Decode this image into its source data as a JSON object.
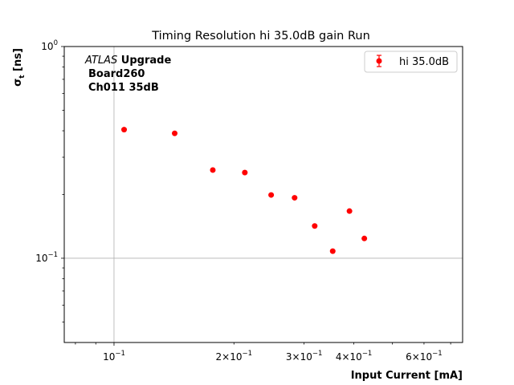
{
  "chart_data": {
    "type": "scatter",
    "title": "Timing Resolution hi 35.0dB gain Run",
    "xlabel": "Input Current [mA]",
    "ylabel_main": "σ",
    "ylabel_sub": "t",
    "ylabel_unit": " [ns]",
    "x_scale": "log",
    "y_scale": "log",
    "xlim": [
      0.075,
      0.75
    ],
    "ylim": [
      0.04,
      1.0
    ],
    "grid": "major ticks only",
    "annotation": {
      "line1_italic": "ATLAS",
      "line1_bold": " Upgrade",
      "line2": "Board260",
      "line3": "Ch011 35dB"
    },
    "x_ticks": [
      {
        "value": 0.1,
        "base": "10",
        "exp": "−1"
      },
      {
        "value": 0.2,
        "mant": "2",
        "base": "10",
        "exp": "−1"
      },
      {
        "value": 0.3,
        "mant": "3",
        "base": "10",
        "exp": "−1"
      },
      {
        "value": 0.4,
        "mant": "4",
        "base": "10",
        "exp": "−1"
      },
      {
        "value": 0.6,
        "mant": "6",
        "base": "10",
        "exp": "−1"
      }
    ],
    "y_ticks": [
      {
        "value": 1.0,
        "base": "10",
        "exp": "0"
      },
      {
        "value": 0.1,
        "base": "10",
        "exp": "−1"
      }
    ],
    "legend": {
      "position": "top-right",
      "label": "hi 35.0dB"
    },
    "series": [
      {
        "name": "hi 35.0dB",
        "color": "#ff0000",
        "x": [
          0.106,
          0.142,
          0.177,
          0.213,
          0.248,
          0.284,
          0.319,
          0.354,
          0.39,
          0.425
        ],
        "y": [
          0.405,
          0.389,
          0.261,
          0.254,
          0.199,
          0.193,
          0.142,
          0.108,
          0.167,
          0.124
        ]
      }
    ]
  }
}
